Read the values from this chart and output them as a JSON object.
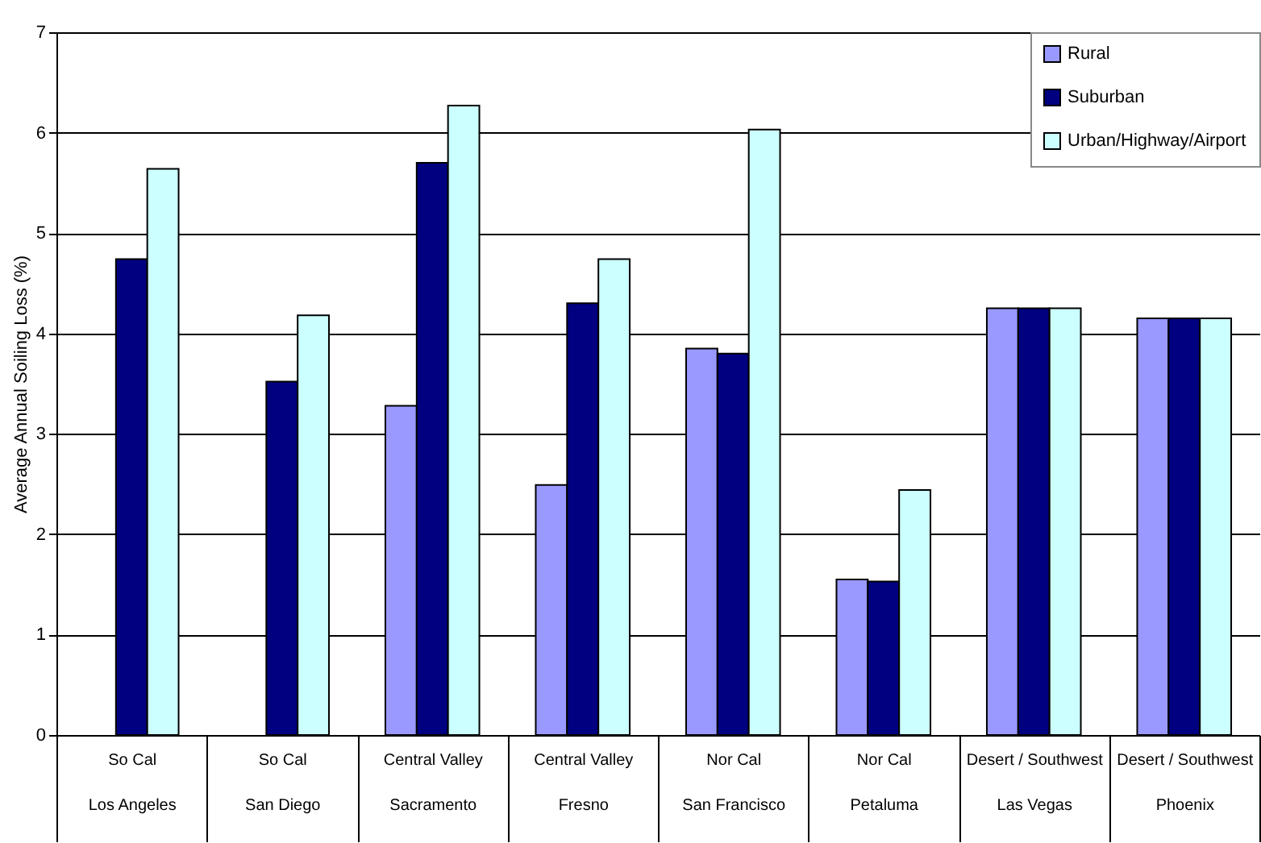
{
  "chart_data": {
    "type": "bar",
    "ylabel": "Average Annual Soiling Loss (%)",
    "categories": [
      "So Cal\nLos Angeles",
      "So Cal\nSan Diego",
      "Central Valley\nSacramento",
      "Central Valley\nFresno",
      "Nor Cal\nSan Francisco",
      "Nor Cal\nPetaluma",
      "Desert / Southwest\nLas Vegas",
      "Desert / Southwest\nPhoenix"
    ],
    "series": [
      {
        "name": "Rural",
        "color": "#9999ff",
        "values": [
          null,
          null,
          3.28,
          2.49,
          3.85,
          1.55,
          4.25,
          4.15
        ]
      },
      {
        "name": "Suburban",
        "color": "#000080",
        "values": [
          4.74,
          3.52,
          5.7,
          4.3,
          3.8,
          1.53,
          4.25,
          4.15
        ]
      },
      {
        "name": "Urban/Highway/Airport",
        "color": "#ccffff",
        "values": [
          5.64,
          4.18,
          6.27,
          4.74,
          6.03,
          2.44,
          4.25,
          4.15
        ]
      }
    ],
    "ylim": [
      0,
      7
    ],
    "yticks": [
      0,
      1,
      2,
      3,
      4,
      5,
      6,
      7
    ],
    "grid": "y",
    "legend": "top right"
  }
}
